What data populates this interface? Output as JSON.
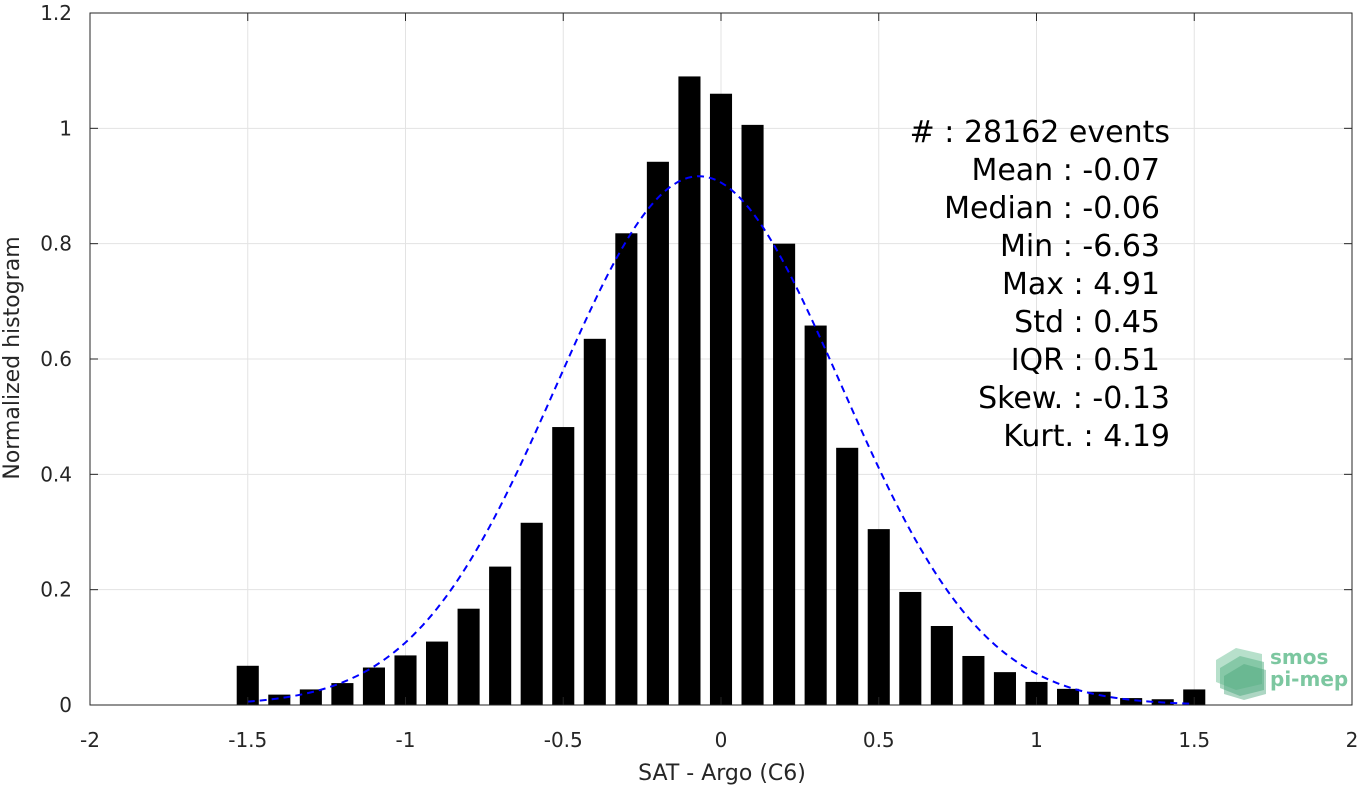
{
  "chart_data": {
    "type": "bar",
    "xlabel": "SAT - Argo (C6)",
    "ylabel": "Normalized histogram",
    "xlim": [
      -2,
      2
    ],
    "ylim": [
      0,
      1.2
    ],
    "xticks": [
      -2,
      -1.5,
      -1,
      -0.5,
      0,
      0.5,
      1,
      1.5,
      2
    ],
    "xtick_labels": [
      "-2",
      "-1.5",
      "-1",
      "-0.5",
      "0",
      "0.5",
      "1",
      "1.5",
      "2"
    ],
    "yticks": [
      0,
      0.2,
      0.4,
      0.6,
      0.8,
      1,
      1.2
    ],
    "ytick_labels": [
      "0",
      "0.2",
      "0.4",
      "0.6",
      "0.8",
      "1",
      "1.2"
    ],
    "grid": true,
    "bar_color": "#000000",
    "bins": [
      -1.5,
      -1.4,
      -1.3,
      -1.2,
      -1.1,
      -1.0,
      -0.9,
      -0.8,
      -0.7,
      -0.6,
      -0.5,
      -0.4,
      -0.3,
      -0.2,
      -0.1,
      0.0,
      0.1,
      0.2,
      0.3,
      0.4,
      0.5,
      0.6,
      0.7,
      0.8,
      0.9,
      1.0,
      1.1,
      1.2,
      1.3,
      1.4,
      1.5
    ],
    "values": [
      0.068,
      0.018,
      0.027,
      0.038,
      0.065,
      0.086,
      0.11,
      0.167,
      0.24,
      0.316,
      0.482,
      0.635,
      0.818,
      0.942,
      1.09,
      1.06,
      1.006,
      0.8,
      0.658,
      0.446,
      0.305,
      0.196,
      0.137,
      0.085,
      0.057,
      0.04,
      0.028,
      0.023,
      0.012,
      0.01,
      0.027
    ],
    "fit": {
      "style": "dashed",
      "color": "#0000ff",
      "mean": -0.07,
      "std": 0.45,
      "peak": 0.917,
      "x_range": [
        -1.5,
        1.5
      ]
    },
    "annotations": [
      "#  : 28162 events",
      "Mean : -0.07",
      "Median : -0.06",
      "Min : -6.63",
      "Max : 4.91",
      "Std : 0.45",
      "IQR : 0.51",
      "Skew. : -0.13",
      "Kurt. : 4.19"
    ]
  },
  "logo": {
    "line1": "smos",
    "line2": "pi-mep",
    "color": "#7cc7a0"
  }
}
